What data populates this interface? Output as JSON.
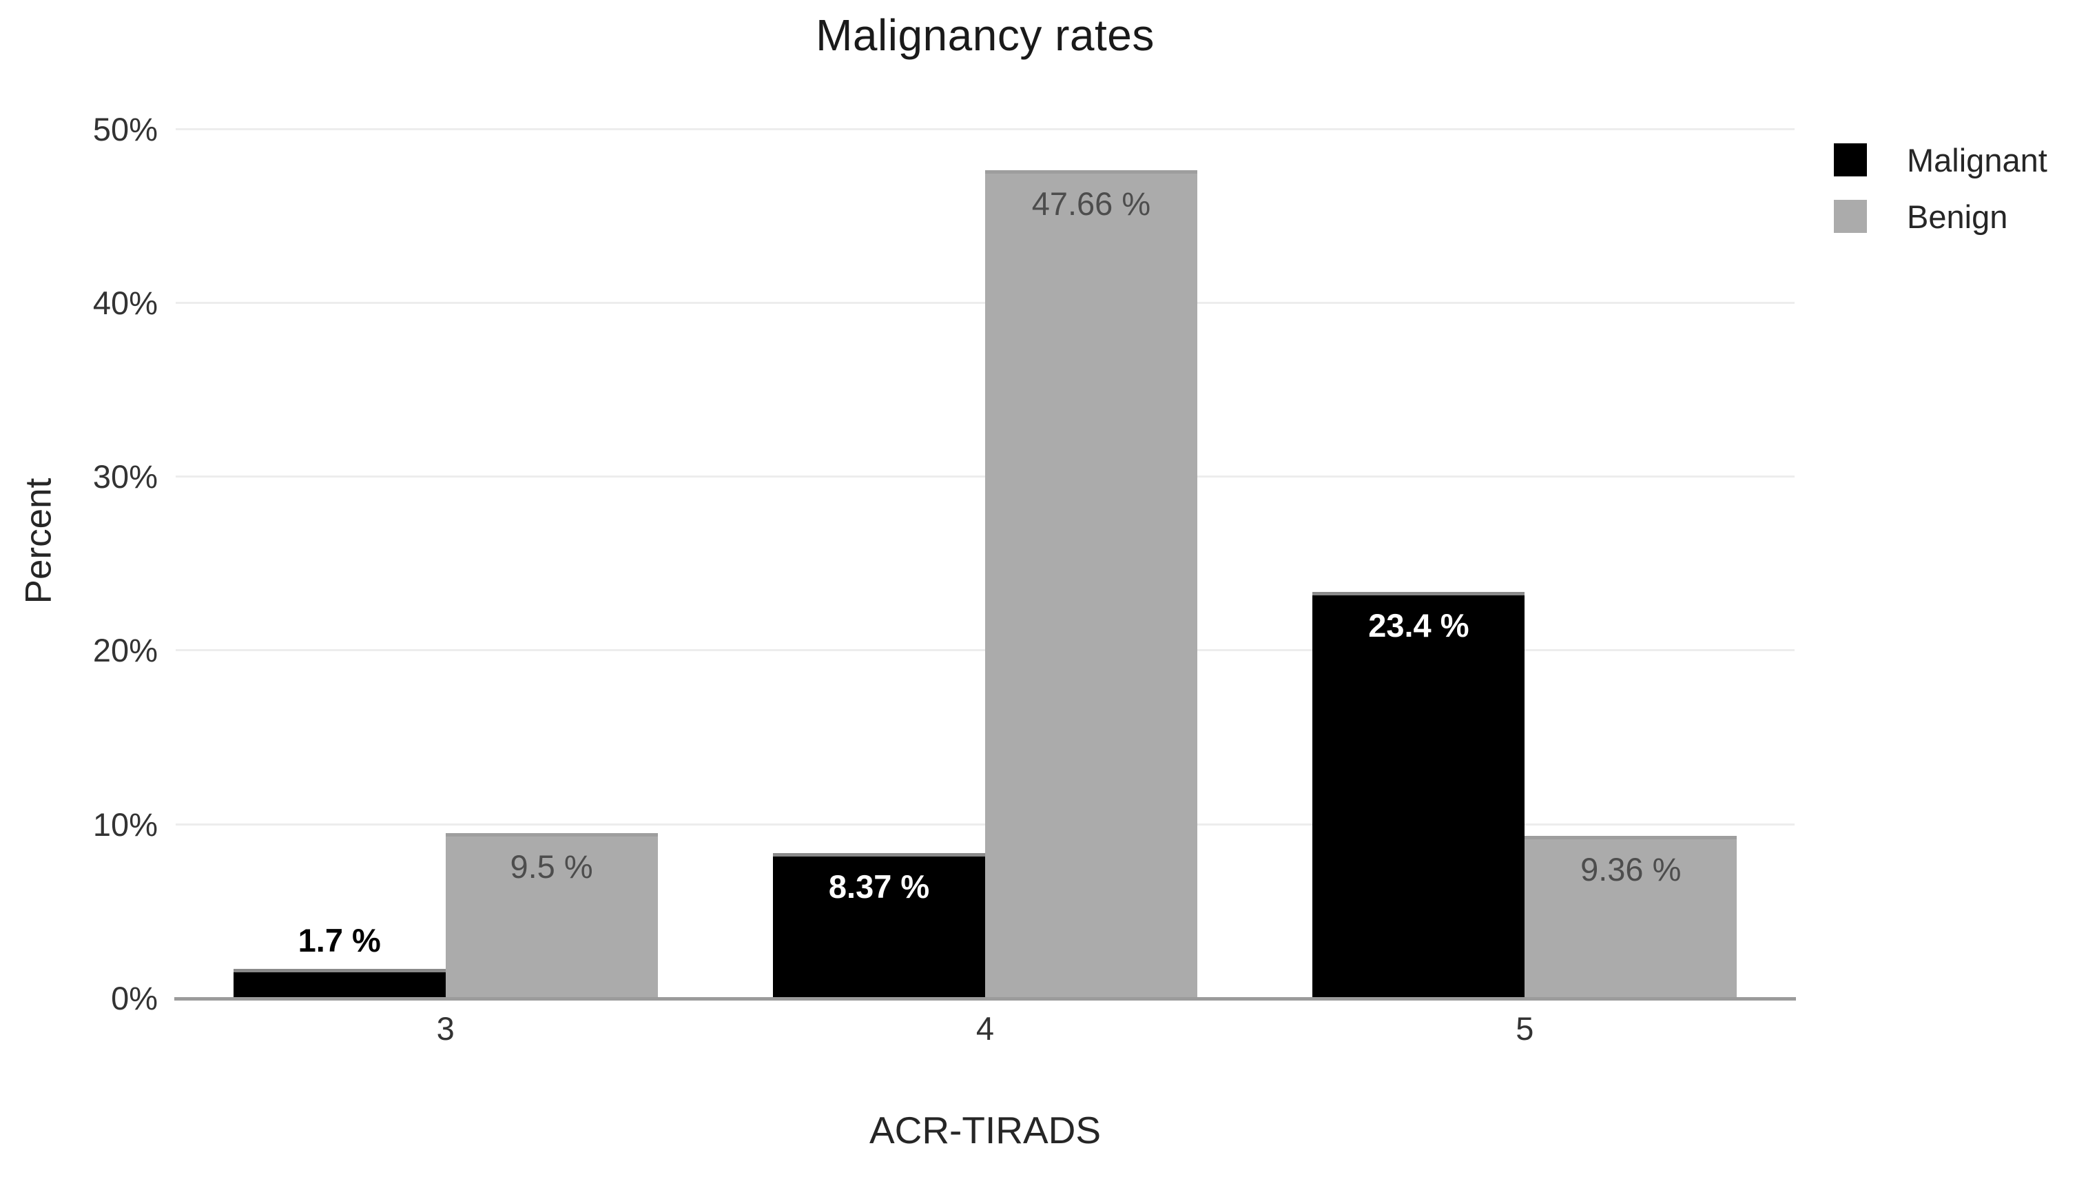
{
  "chart_data": {
    "type": "bar",
    "title": "Malignancy rates",
    "xlabel": "ACR-TIRADS",
    "ylabel": "Percent",
    "categories": [
      "3",
      "4",
      "5"
    ],
    "series": [
      {
        "name": "Malignant",
        "color": "#000000",
        "top_edge_color": "#8a8a8a",
        "label_color": "#ffffff",
        "label_weight": "700",
        "values": [
          1.7,
          8.37,
          23.4
        ],
        "labels": [
          "1.7 %",
          "8.37 %",
          "23.4 %"
        ]
      },
      {
        "name": "Benign",
        "color": "#ababab",
        "top_edge_color": "#9e9e9e",
        "label_color": "#4d4d4d",
        "label_weight": "400",
        "values": [
          9.5,
          47.66,
          9.36
        ],
        "labels": [
          "9.5 %",
          "47.66 %",
          "9.36 %"
        ]
      }
    ],
    "y_ticks": [
      {
        "value": 0,
        "label": "0%"
      },
      {
        "value": 10,
        "label": "10%"
      },
      {
        "value": 20,
        "label": "20%"
      },
      {
        "value": 30,
        "label": "30%"
      },
      {
        "value": 40,
        "label": "40%"
      },
      {
        "value": 50,
        "label": "50%"
      }
    ],
    "ylim": [
      0,
      52.6
    ],
    "grid": "horizontal",
    "grid_color": "#ededed",
    "axis_line_color": "#9b9b9b",
    "legend_position": "top-right",
    "bar_width_pct": 13.1
  }
}
